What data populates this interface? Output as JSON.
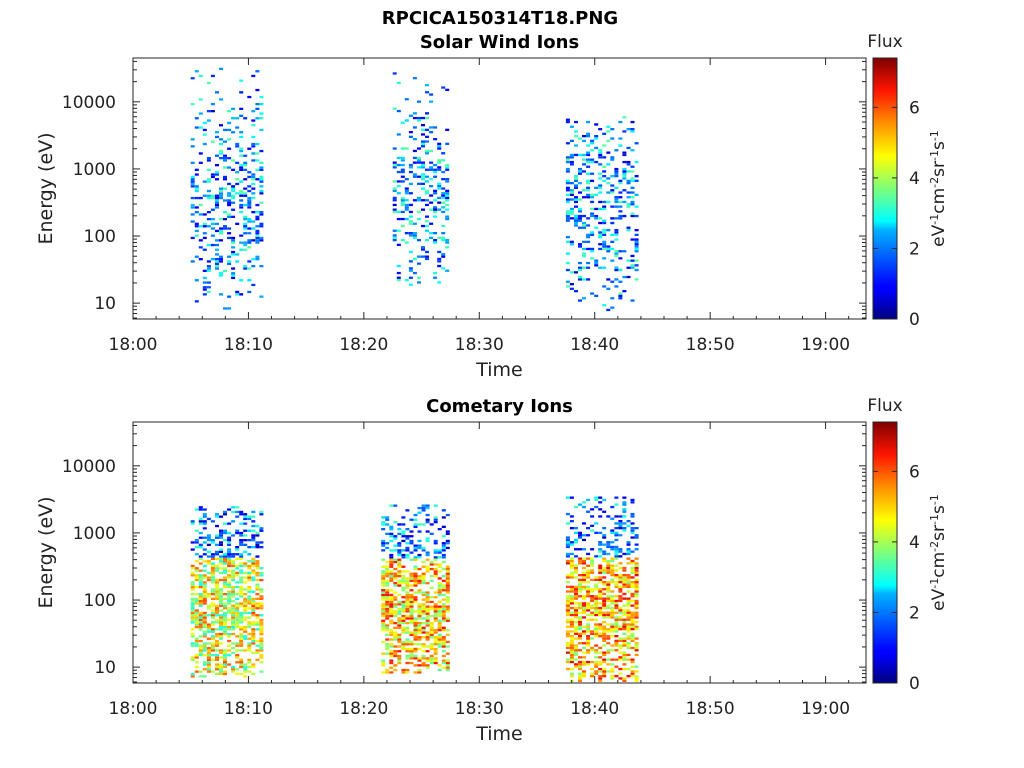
{
  "figure_title": "RPCICA150314T18.PNG",
  "colorbar": {
    "title": "Flux",
    "label": "eV-1cm-2sr-1s-1",
    "label_parts": [
      {
        "t": "eV",
        "s": false
      },
      {
        "t": "-1",
        "s": true
      },
      {
        "t": "cm",
        "s": false
      },
      {
        "t": "-2",
        "s": true
      },
      {
        "t": "sr",
        "s": false
      },
      {
        "t": "-1",
        "s": true
      },
      {
        "t": "s",
        "s": false
      },
      {
        "t": "-1",
        "s": true
      }
    ],
    "range": [
      0,
      7.4
    ],
    "ticks": [
      "0",
      "2",
      "4",
      "6"
    ],
    "colormap": "jet"
  },
  "chart_data": [
    {
      "type": "heatmap",
      "title": "Solar Wind Ions",
      "xlabel": "Time",
      "ylabel": "Energy (eV)",
      "x_ticks": [
        "18:00",
        "18:10",
        "18:20",
        "18:30",
        "18:40",
        "18:50",
        "19:00"
      ],
      "x_range_min": [
        0,
        63.5
      ],
      "y_ticks": [
        "10",
        "100",
        "1000",
        "10000"
      ],
      "y_scale": "log",
      "y_range": [
        5.8,
        45000
      ],
      "bursts": [
        {
          "t_start": 5.0,
          "t_end": 11.2,
          "e_min": 8,
          "e_max": 30000,
          "flux_typical": 2.0
        },
        {
          "t_start": 22.5,
          "t_end": 27.3,
          "e_min": 18,
          "e_max": 26000,
          "flux_typical": 2.0
        },
        {
          "t_start": 37.5,
          "t_end": 43.5,
          "e_min": 7,
          "e_max": 6000,
          "flux_typical": 2.0
        }
      ]
    },
    {
      "type": "heatmap",
      "title": "Cometary Ions",
      "xlabel": "Time",
      "ylabel": "Energy (eV)",
      "x_ticks": [
        "18:00",
        "18:10",
        "18:20",
        "18:30",
        "18:40",
        "18:50",
        "19:00"
      ],
      "x_range_min": [
        0,
        63.5
      ],
      "y_ticks": [
        "10",
        "100",
        "1000",
        "10000"
      ],
      "y_scale": "log",
      "y_range": [
        5.8,
        45000
      ],
      "bursts": [
        {
          "t_start": 5.0,
          "t_end": 11.2,
          "e_min": 7,
          "e_max": 2500,
          "flux_typical": 4.5
        },
        {
          "t_start": 21.5,
          "t_end": 27.3,
          "e_min": 8,
          "e_max": 2600,
          "flux_typical": 5.0
        },
        {
          "t_start": 37.5,
          "t_end": 43.5,
          "e_min": 6,
          "e_max": 3300,
          "flux_typical": 5.2
        }
      ]
    }
  ]
}
